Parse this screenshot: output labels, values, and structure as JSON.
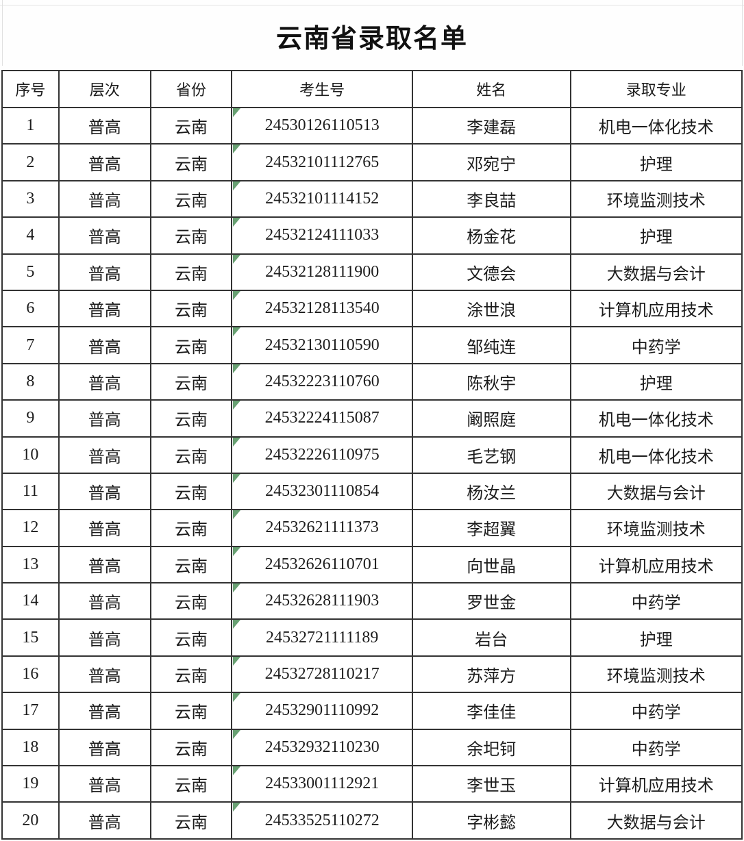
{
  "page": {
    "title": "云南省录取名单"
  },
  "colors": {
    "border": "#333333",
    "text": "#1c1c1c",
    "text_format_indicator_green": "#69a173",
    "background": "#ffffff"
  },
  "table": {
    "columns": [
      "序号",
      "层次",
      "省份",
      "考生号",
      "姓名",
      "录取专业"
    ],
    "column_keys": [
      "no",
      "level",
      "province",
      "exam_id",
      "name",
      "major"
    ],
    "rows": [
      {
        "no": "1",
        "level": "普高",
        "province": "云南",
        "exam_id": "24530126110513",
        "name": "李建磊",
        "major": "机电一体化技术"
      },
      {
        "no": "2",
        "level": "普高",
        "province": "云南",
        "exam_id": "24532101112765",
        "name": "邓宛宁",
        "major": "护理"
      },
      {
        "no": "3",
        "level": "普高",
        "province": "云南",
        "exam_id": "24532101114152",
        "name": "李良喆",
        "major": "环境监测技术"
      },
      {
        "no": "4",
        "level": "普高",
        "province": "云南",
        "exam_id": "24532124111033",
        "name": "杨金花",
        "major": "护理"
      },
      {
        "no": "5",
        "level": "普高",
        "province": "云南",
        "exam_id": "24532128111900",
        "name": "文德会",
        "major": "大数据与会计"
      },
      {
        "no": "6",
        "level": "普高",
        "province": "云南",
        "exam_id": "24532128113540",
        "name": "涂世浪",
        "major": "计算机应用技术"
      },
      {
        "no": "7",
        "level": "普高",
        "province": "云南",
        "exam_id": "24532130110590",
        "name": "邹纯连",
        "major": "中药学"
      },
      {
        "no": "8",
        "level": "普高",
        "province": "云南",
        "exam_id": "24532223110760",
        "name": "陈秋宇",
        "major": "护理"
      },
      {
        "no": "9",
        "level": "普高",
        "province": "云南",
        "exam_id": "24532224115087",
        "name": "阚照庭",
        "major": "机电一体化技术"
      },
      {
        "no": "10",
        "level": "普高",
        "province": "云南",
        "exam_id": "24532226110975",
        "name": "毛艺钢",
        "major": "机电一体化技术"
      },
      {
        "no": "11",
        "level": "普高",
        "province": "云南",
        "exam_id": "24532301110854",
        "name": "杨汝兰",
        "major": "大数据与会计"
      },
      {
        "no": "12",
        "level": "普高",
        "province": "云南",
        "exam_id": "24532621111373",
        "name": "李超翼",
        "major": "环境监测技术"
      },
      {
        "no": "13",
        "level": "普高",
        "province": "云南",
        "exam_id": "24532626110701",
        "name": "向世晶",
        "major": "计算机应用技术"
      },
      {
        "no": "14",
        "level": "普高",
        "province": "云南",
        "exam_id": "24532628111903",
        "name": "罗世金",
        "major": "中药学"
      },
      {
        "no": "15",
        "level": "普高",
        "province": "云南",
        "exam_id": "24532721111189",
        "name": "岩台",
        "major": "护理"
      },
      {
        "no": "16",
        "level": "普高",
        "province": "云南",
        "exam_id": "24532728110217",
        "name": "苏萍方",
        "major": "环境监测技术"
      },
      {
        "no": "17",
        "level": "普高",
        "province": "云南",
        "exam_id": "24532901110992",
        "name": "李佳佳",
        "major": "中药学"
      },
      {
        "no": "18",
        "level": "普高",
        "province": "云南",
        "exam_id": "24532932110230",
        "name": "余圯钶",
        "major": "中药学"
      },
      {
        "no": "19",
        "level": "普高",
        "province": "云南",
        "exam_id": "24533001112921",
        "name": "李世玉",
        "major": "计算机应用技术"
      },
      {
        "no": "20",
        "level": "普高",
        "province": "云南",
        "exam_id": "24533525110272",
        "name": "字彬懿",
        "major": "大数据与会计"
      }
    ]
  }
}
